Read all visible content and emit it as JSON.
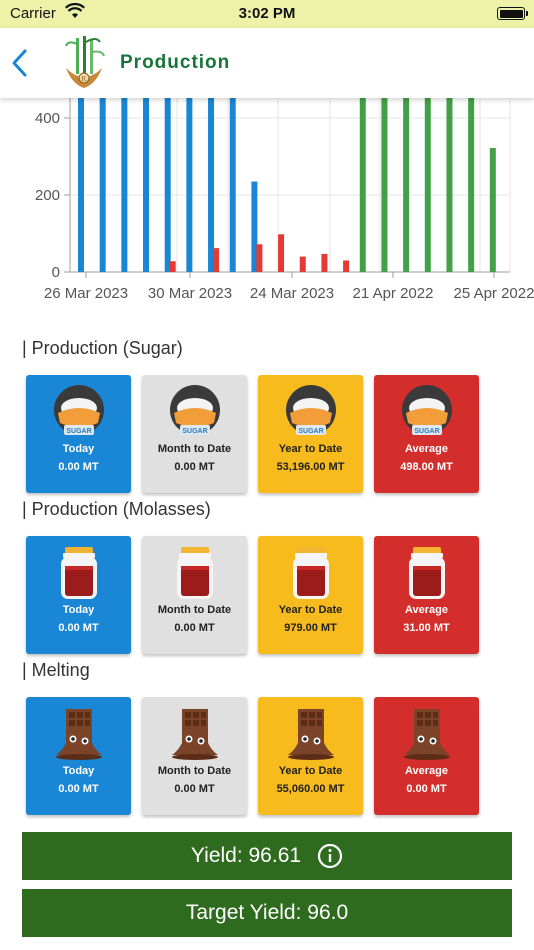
{
  "status_bar": {
    "carrier": "Carrier",
    "time": "3:02 PM"
  },
  "nav": {
    "title": "Production"
  },
  "colors": {
    "blue": "#1a86d6",
    "red": "#e53935",
    "green": "#43a047",
    "card_grey": "#e0e0e0",
    "card_yellow": "#f7bb1e",
    "card_red": "#d42e2c",
    "header_green": "#17753a",
    "button_green": "#2e6b1f"
  },
  "chart_data": {
    "type": "bar",
    "y_ticks": [
      "0",
      "200",
      "400"
    ],
    "x_ticks": [
      "26 Mar 2023",
      "30 Mar 2023",
      "24 Mar 2023",
      "21 Apr 2022",
      "25 Apr 2022"
    ],
    "ylim_visible": [
      0,
      400
    ],
    "series": [
      {
        "color": "blue",
        "values": [
          460,
          460,
          460,
          460,
          460,
          460,
          460,
          460,
          235,
          0,
          0,
          0,
          0,
          0,
          0,
          0,
          0,
          0,
          0,
          0
        ]
      },
      {
        "color": "red",
        "values": [
          0,
          0,
          0,
          0,
          28,
          0,
          62,
          0,
          72,
          98,
          40,
          47,
          30,
          0,
          0,
          0,
          0,
          0,
          0,
          0
        ]
      },
      {
        "color": "green",
        "values": [
          0,
          0,
          0,
          0,
          0,
          0,
          0,
          0,
          0,
          0,
          0,
          0,
          0,
          460,
          460,
          460,
          460,
          460,
          460,
          322
        ]
      }
    ]
  },
  "sections": {
    "sugar": {
      "title": "| Production (Sugar)",
      "cards": [
        {
          "label": "Today",
          "value": "0.00 MT"
        },
        {
          "label": "Month to Date",
          "value": "0.00 MT"
        },
        {
          "label": "Year to Date",
          "value": "53,196.00 MT"
        },
        {
          "label": "Average",
          "value": "498.00 MT"
        }
      ],
      "icon": "sugar-bowl-icon",
      "icon_text": "SUGAR"
    },
    "molasses": {
      "title": "| Production (Molasses)",
      "cards": [
        {
          "label": "Today",
          "value": "0.00 MT"
        },
        {
          "label": "Month to Date",
          "value": "0.00 MT"
        },
        {
          "label": "Year to Date",
          "value": "979.00 MT"
        },
        {
          "label": "Average",
          "value": "31.00 MT"
        }
      ],
      "icon": "jam-jar-icon"
    },
    "melting": {
      "title": "| Melting",
      "cards": [
        {
          "label": "Today",
          "value": "0.00 MT"
        },
        {
          "label": "Month to Date",
          "value": "0.00 MT"
        },
        {
          "label": "Year to Date",
          "value": "55,060.00 MT"
        },
        {
          "label": "Average",
          "value": "0.00 MT"
        }
      ],
      "icon": "melting-chocolate-icon"
    }
  },
  "yield": {
    "label": "Yield: 96.61",
    "target_label": "Target Yield: 96.0"
  }
}
